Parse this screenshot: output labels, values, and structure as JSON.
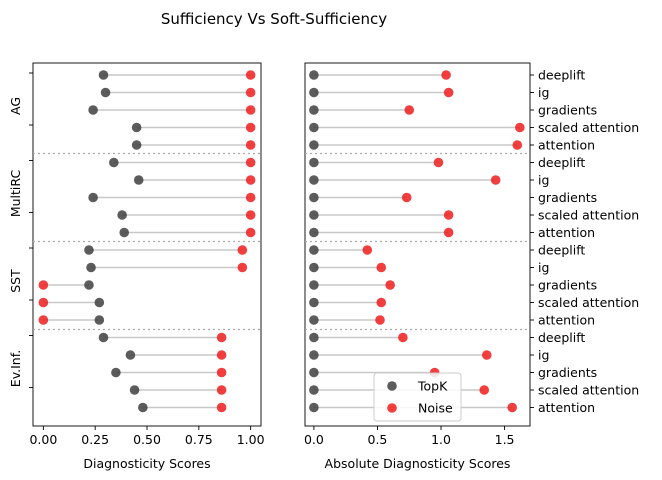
{
  "chart_data": {
    "title": "Sufficiency Vs Soft-Sufficiency",
    "type": "dumbbell",
    "legend": {
      "placement": "lower-right of right panel",
      "entries": [
        {
          "name": "TopK",
          "color": "#404040"
        },
        {
          "name": "Noise",
          "color": "#ee1c1c"
        }
      ]
    },
    "groups": [
      "AG",
      "MultiRC",
      "SST",
      "Ev.Inf."
    ],
    "methods": [
      "deeplift",
      "ig",
      "gradients",
      "scaled attention",
      "attention"
    ],
    "panels": [
      {
        "name": "left",
        "xlabel": "Diagnosticity Scores",
        "xlim": [
          -0.05,
          1.05
        ],
        "xticks": [
          0.0,
          0.25,
          0.5,
          0.75,
          1.0
        ],
        "xtick_labels": [
          "0.00",
          "0.25",
          "0.50",
          "0.75",
          "1.00"
        ],
        "ytick_labels_side": "left",
        "data": {
          "AG": {
            "topk": [
              0.29,
              0.3,
              0.24,
              0.45,
              0.45
            ],
            "noise": [
              1.0,
              1.0,
              1.0,
              1.0,
              1.0
            ]
          },
          "MultiRC": {
            "topk": [
              0.34,
              0.46,
              0.24,
              0.38,
              0.39
            ],
            "noise": [
              1.0,
              1.0,
              1.0,
              1.0,
              1.0
            ]
          },
          "SST": {
            "topk": [
              0.22,
              0.23,
              0.22,
              0.27,
              0.27
            ],
            "noise": [
              0.96,
              0.96,
              0.0,
              0.0,
              0.0
            ]
          },
          "Ev.Inf.": {
            "topk": [
              0.29,
              0.42,
              0.35,
              0.44,
              0.48
            ],
            "noise": [
              0.86,
              0.86,
              0.86,
              0.86,
              0.86
            ]
          }
        }
      },
      {
        "name": "right",
        "xlabel": "Absolute Diagnosticity Scores",
        "xlim": [
          -0.07,
          1.7
        ],
        "xticks": [
          0.0,
          0.5,
          1.0,
          1.5
        ],
        "xtick_labels": [
          "0.0",
          "0.5",
          "1.0",
          "1.5"
        ],
        "ytick_labels_side": "right",
        "data": {
          "AG": {
            "topk": [
              0.0,
              0.0,
              0.0,
              0.0,
              0.0
            ],
            "noise": [
              1.04,
              1.06,
              0.75,
              1.62,
              1.6
            ]
          },
          "MultiRC": {
            "topk": [
              0.0,
              0.0,
              0.0,
              0.0,
              0.0
            ],
            "noise": [
              0.98,
              1.43,
              0.73,
              1.06,
              1.06
            ]
          },
          "SST": {
            "topk": [
              0.0,
              0.0,
              0.0,
              0.0,
              0.0
            ],
            "noise": [
              0.42,
              0.53,
              0.6,
              0.53,
              0.52
            ]
          },
          "Ev.Inf.": {
            "topk": [
              0.0,
              0.0,
              0.0,
              0.0,
              0.0
            ],
            "noise": [
              0.7,
              1.36,
              0.95,
              1.34,
              1.56
            ]
          }
        }
      }
    ],
    "grid": false
  }
}
